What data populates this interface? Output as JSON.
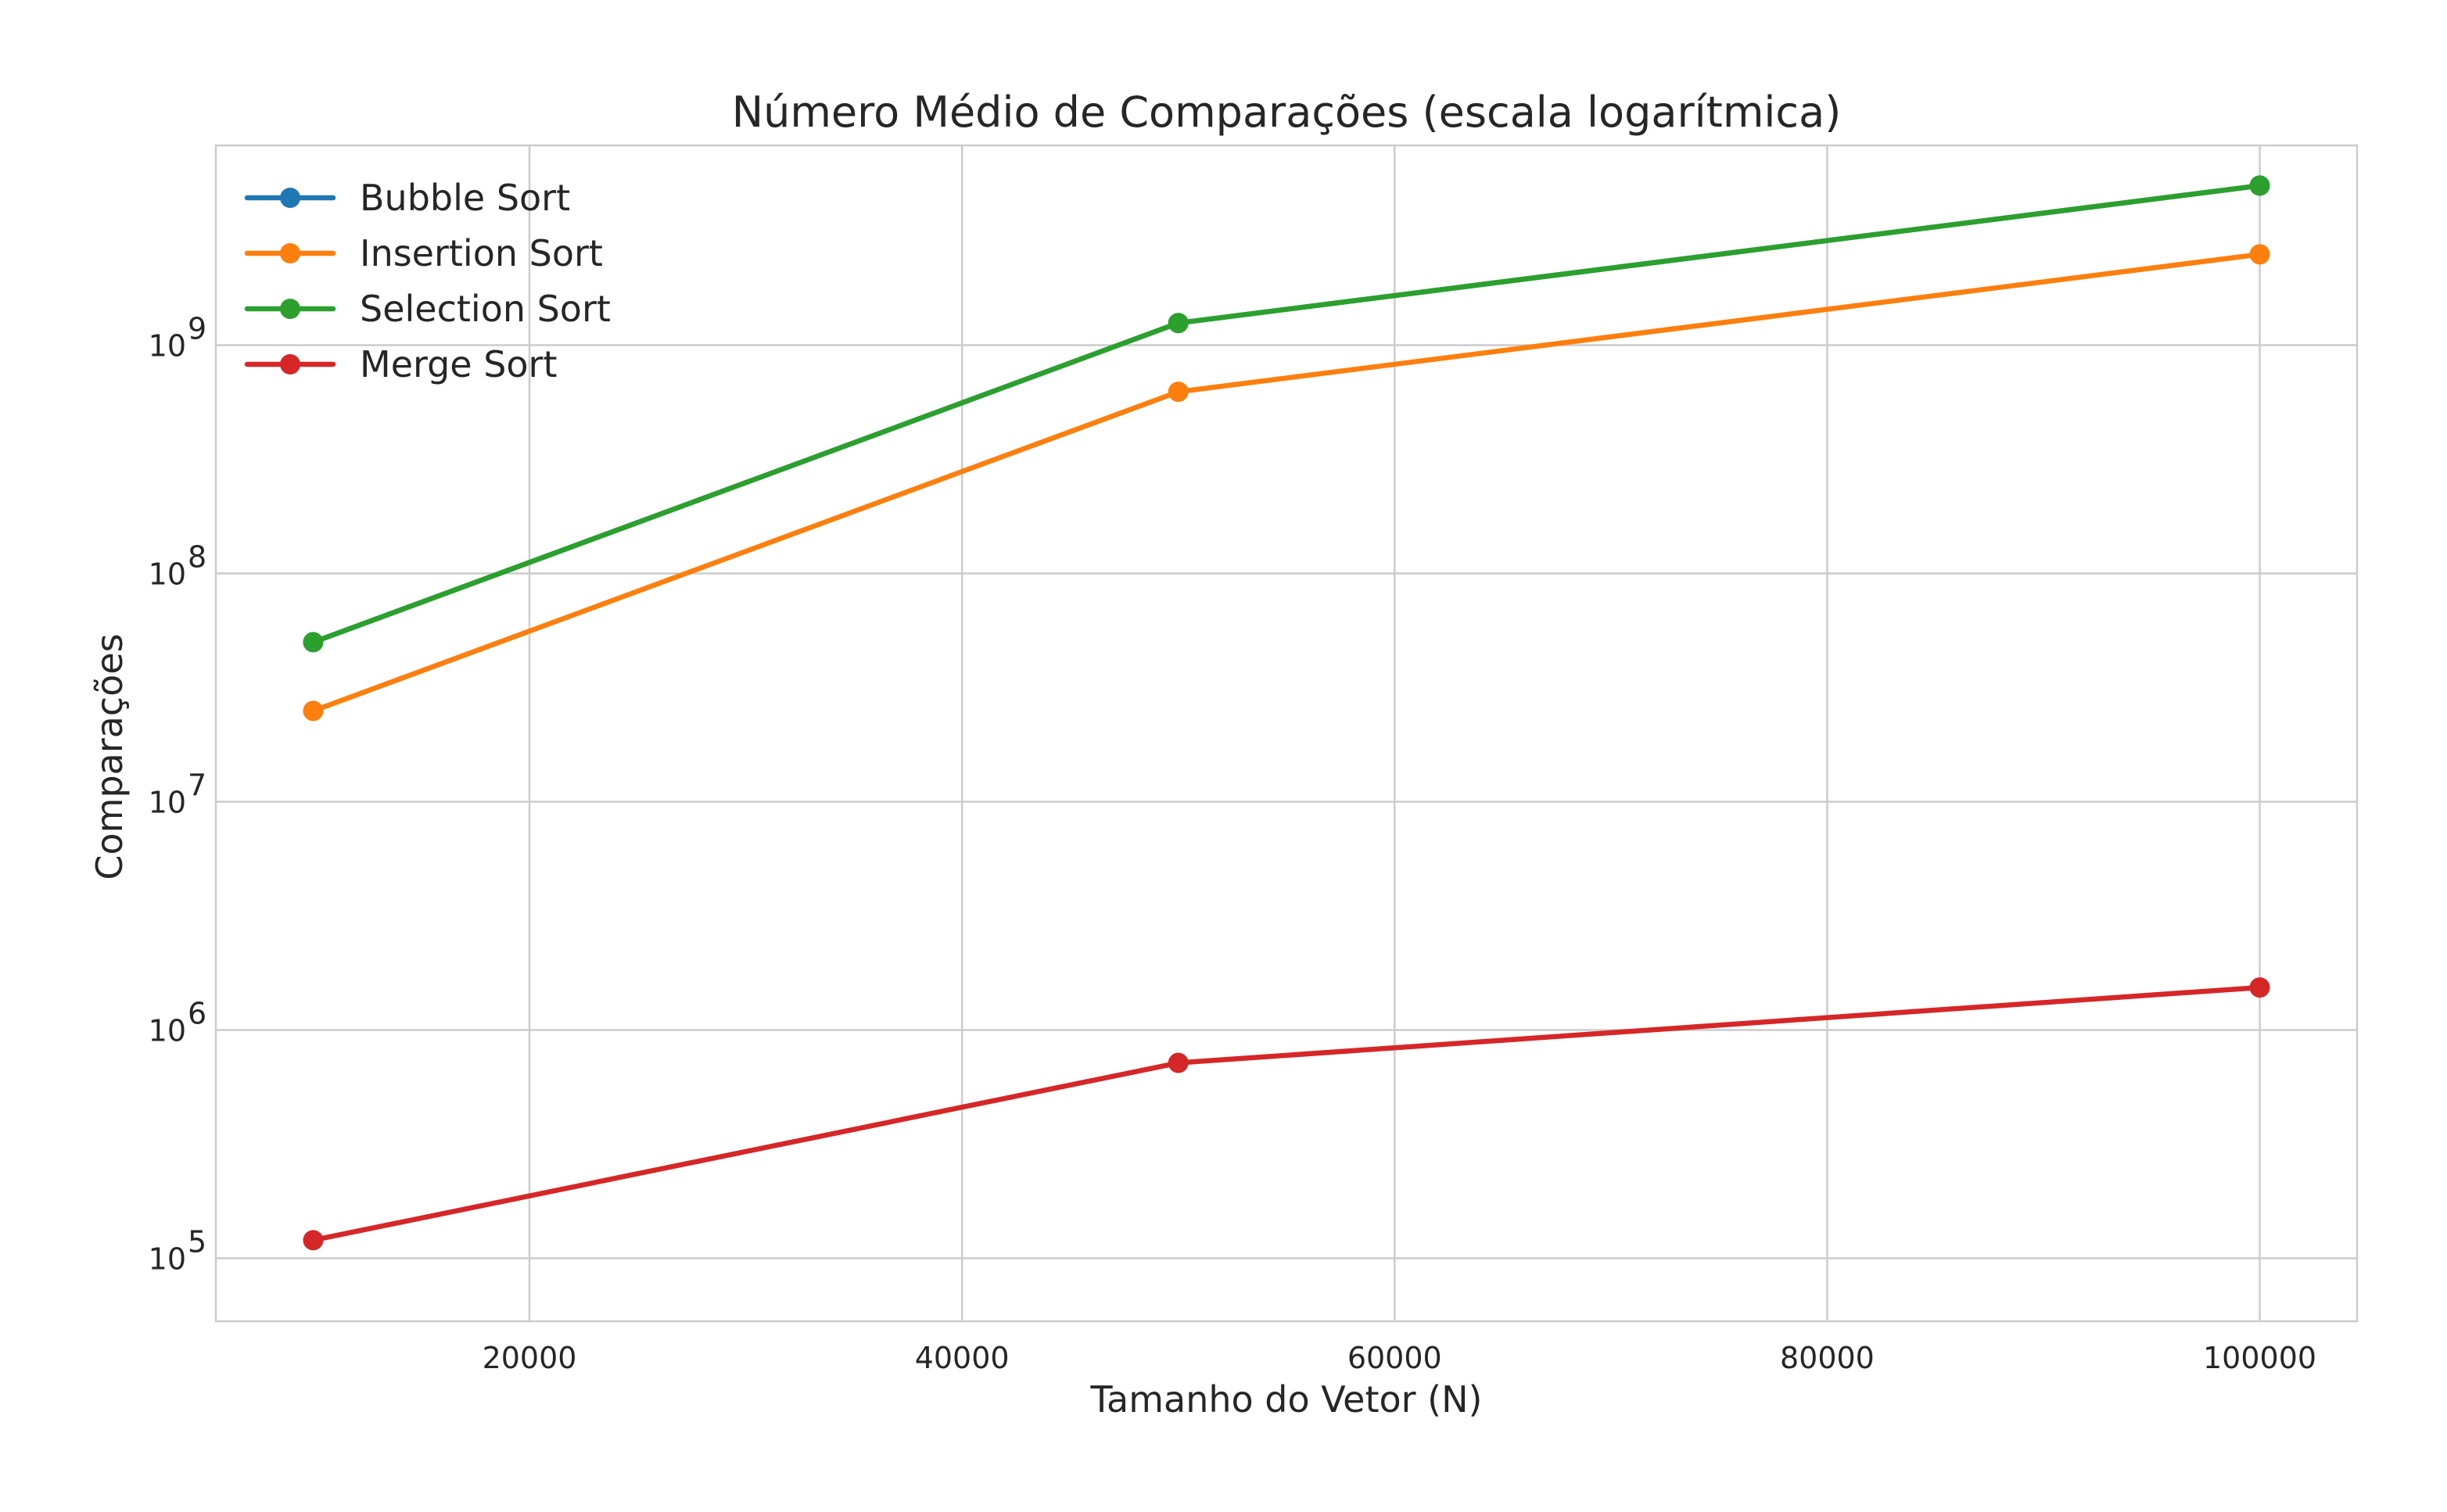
{
  "chart_data": {
    "type": "line",
    "title": "Número Médio de Comparações (escala logarítmica)",
    "xlabel": "Tamanho do Vetor (N)",
    "ylabel": "Comparações",
    "y_scale": "log",
    "grid": true,
    "legend_position": "top-left",
    "xlim": [
      5500,
      104500
    ],
    "ylim": [
      53000,
      7500000000
    ],
    "x_ticks": [
      20000,
      40000,
      60000,
      80000,
      100000
    ],
    "x_tick_labels": [
      "20000",
      "40000",
      "60000",
      "80000",
      "100000"
    ],
    "y_ticks": [
      100000,
      1000000,
      10000000,
      100000000,
      1000000000
    ],
    "y_tick_labels": [
      {
        "base": "10",
        "exp": "5"
      },
      {
        "base": "10",
        "exp": "6"
      },
      {
        "base": "10",
        "exp": "7"
      },
      {
        "base": "10",
        "exp": "8"
      },
      {
        "base": "10",
        "exp": "9"
      }
    ],
    "x": [
      10000,
      50000,
      100000
    ],
    "series": [
      {
        "name": "Bubble Sort",
        "color": "#1f77b4",
        "values": [
          49995000,
          1249975000,
          4999950000
        ]
      },
      {
        "name": "Insertion Sort",
        "color": "#ff7f0e",
        "values": [
          25000000,
          625000000,
          2500000000
        ]
      },
      {
        "name": "Selection Sort",
        "color": "#2ca02c",
        "values": [
          49995000,
          1249975000,
          4999950000
        ]
      },
      {
        "name": "Merge Sort",
        "color": "#d62728",
        "values": [
          120000,
          718000,
          1536000
        ]
      }
    ]
  }
}
